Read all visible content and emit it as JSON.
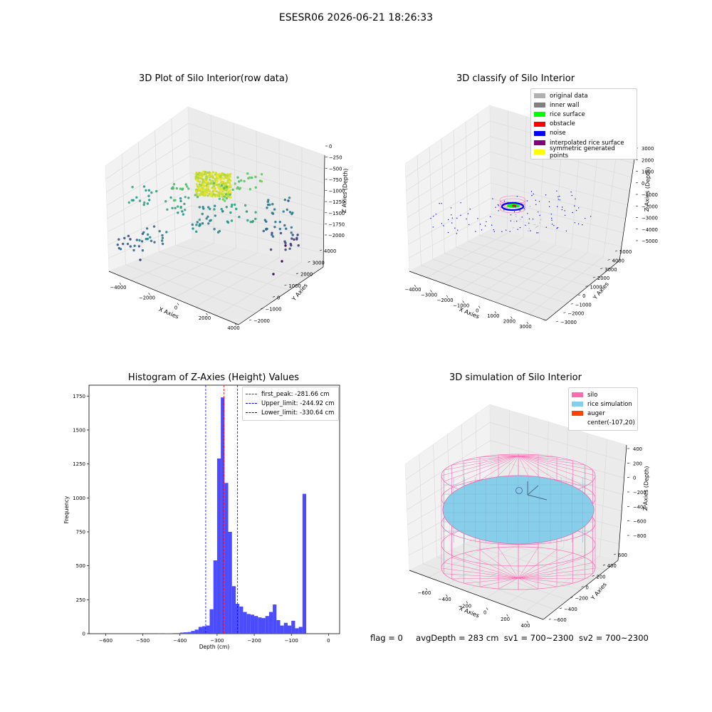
{
  "suptitle": "ESESR06 2026-06-21 18:26:33",
  "footer": {
    "flag": "flag = 0",
    "avg_depth": "avgDepth = 283 cm",
    "sv1": "sv1 = 700~2300",
    "sv2": "sv2 = 700~2300"
  },
  "colors": {
    "original_data": "#b0b0b0",
    "inner_wall": "#808080",
    "rice_surface": "#00ff00",
    "obstacle": "#ff0000",
    "noise": "#0000ff",
    "interpolated_rice_surface": "#800080",
    "symmetric_generated_points": "#ffff00",
    "silo": "#ff69b4",
    "rice_simulation": "#87ceeb",
    "auger": "#ff4500",
    "histogram_bar": "#4b4bff"
  },
  "chart_data": [
    {
      "type": "scatter",
      "title": "3D Plot of Silo Interior(row data)",
      "xlabel": "X Axies",
      "ylabel": "Y Axies",
      "zlabel": "Z Axies (Depth)",
      "x_ticks": [
        "−4000",
        "−2000",
        "0",
        "2000",
        "4000"
      ],
      "y_ticks": [
        "−2000",
        "−1000",
        "0",
        "1000",
        "2000",
        "3000",
        "4000"
      ],
      "z_ticks": [
        "0",
        "−250",
        "−500",
        "−750",
        "−1000",
        "−1250",
        "−1500",
        "−1750",
        "−2000"
      ],
      "xlim": [
        -4500,
        4500
      ],
      "ylim": [
        -2200,
        4200
      ],
      "zlim": [
        -2300,
        100
      ],
      "colormap": "viridis"
    },
    {
      "type": "scatter",
      "title": "3D classify of Silo Interior",
      "zlabel": "Z Axies (Depth)",
      "xlabel": "X Axies",
      "ylabel": "Y Axies",
      "x_ticks": [
        "−4000",
        "−3000",
        "−2000",
        "−1000",
        "0",
        "1000",
        "2000",
        "3000"
      ],
      "y_ticks": [
        "−3000",
        "−2000",
        "−1000",
        "0",
        "1000",
        "2000",
        "3000",
        "4000",
        "5000"
      ],
      "z_ticks": [
        "3000",
        "2000",
        "1000",
        "0",
        "−1000",
        "−2000",
        "−3000",
        "−4000",
        "−5000"
      ],
      "xlim": [
        -4500,
        3500
      ],
      "ylim": [
        -3200,
        5200
      ],
      "zlim": [
        -5000,
        3000
      ],
      "legend": [
        {
          "label": "original data",
          "color_key": "original_data"
        },
        {
          "label": "inner wall",
          "color_key": "inner_wall"
        },
        {
          "label": "rice surface",
          "color_key": "rice_surface"
        },
        {
          "label": "obstacle",
          "color_key": "obstacle"
        },
        {
          "label": "noise",
          "color_key": "noise"
        },
        {
          "label": "interpolated rice surface",
          "color_key": "interpolated_rice_surface"
        },
        {
          "label": "symmetric generated points",
          "color_key": "symmetric_generated_points"
        }
      ],
      "legend_placement": "top-right"
    },
    {
      "type": "bar",
      "title": "Histogram of Z-Axies (Height) Values",
      "xlabel": "Depth (cm)",
      "ylabel": "Frequency",
      "xlim": [
        -645,
        30
      ],
      "ylim": [
        0,
        1830
      ],
      "x_ticks": [
        "−600",
        "−500",
        "−400",
        "−300",
        "−200",
        "−100",
        "0"
      ],
      "y_ticks": [
        "0",
        "250",
        "500",
        "750",
        "1000",
        "1250",
        "1500",
        "1750"
      ],
      "bin_width": 10,
      "bins_start": [
        -460,
        -440,
        -430,
        -420,
        -410,
        -400,
        -390,
        -380,
        -370,
        -360,
        -350,
        -340,
        -330,
        -320,
        -310,
        -300,
        -290,
        -280,
        -270,
        -260,
        -250,
        -240,
        -230,
        -220,
        -210,
        -200,
        -190,
        -180,
        -170,
        -160,
        -150,
        -140,
        -130,
        -120,
        -110,
        -100,
        -90,
        -80,
        -70,
        -60,
        -50,
        -40,
        -30,
        -20,
        -10
      ],
      "values": [
        3,
        2,
        3,
        4,
        4,
        8,
        10,
        12,
        20,
        30,
        50,
        55,
        60,
        180,
        540,
        1290,
        1740,
        1110,
        750,
        350,
        220,
        200,
        160,
        145,
        140,
        130,
        120,
        115,
        130,
        160,
        215,
        100,
        60,
        80,
        60,
        95,
        40,
        50,
        1030,
        0,
        0,
        0,
        0,
        0,
        0
      ],
      "vlines": [
        {
          "label": "first_peak: -281.66 cm",
          "x": -281.66,
          "color": "#ff0000"
        },
        {
          "label": "Upper_limit: -244.92 cm",
          "x": -244.92,
          "color": "#0000ff"
        },
        {
          "label": "Lower_limit: -330.64 cm",
          "x": -330.64,
          "color": "#0000ff"
        }
      ],
      "legend_placement": "top-right"
    },
    {
      "type": "surface",
      "title": "3D simulation of Silo Interior",
      "xlabel": "X Axies",
      "ylabel": "Y Axies",
      "zlabel": "Z Axies (Depth)",
      "x_ticks": [
        "−600",
        "−400",
        "−200",
        "0",
        "200",
        "400"
      ],
      "y_ticks": [
        "−600",
        "−400",
        "−200",
        "0",
        "200",
        "400",
        "600"
      ],
      "z_ticks": [
        "400",
        "200",
        "0",
        "−200",
        "−400",
        "−600",
        "−800"
      ],
      "legend": [
        {
          "label": "silo",
          "color_key": "silo"
        },
        {
          "label": "rice simulation",
          "color_key": "rice_simulation"
        },
        {
          "label": "auger",
          "color_key": "auger"
        },
        {
          "label": "center(-107,20)",
          "color_key": ""
        }
      ],
      "legend_placement": "top-right"
    }
  ]
}
